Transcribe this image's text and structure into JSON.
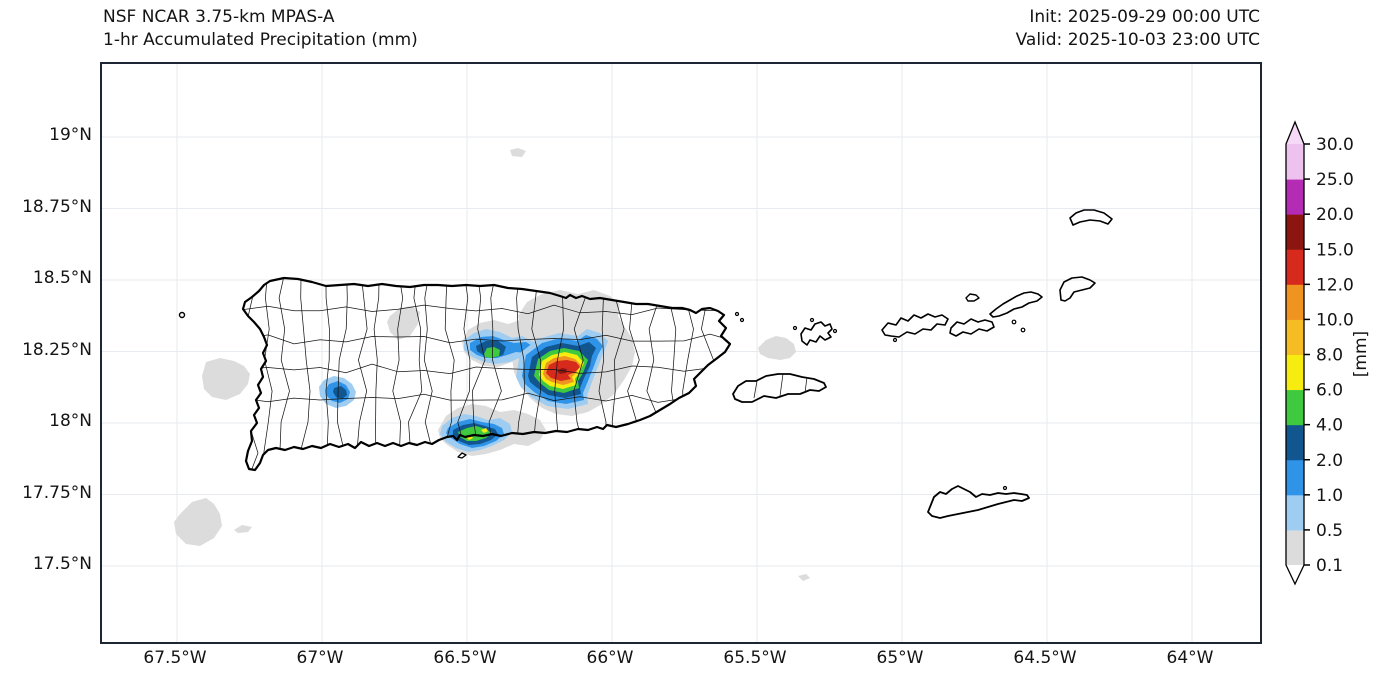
{
  "header": {
    "model_line": "NSF NCAR 3.75-km MPAS-A",
    "product_line": "1-hr Accumulated Precipitation (mm)",
    "init_line": "Init: 2025-09-29 00:00 UTC",
    "valid_line": "Valid: 2025-10-03 23:00 UTC"
  },
  "axes": {
    "x_tick_labels": [
      "67.5°W",
      "67°W",
      "66.5°W",
      "66°W",
      "65.5°W",
      "65°W",
      "64.5°W",
      "64°W"
    ],
    "y_tick_labels": [
      "19°N",
      "18.75°N",
      "18.5°N",
      "18.25°N",
      "18°N",
      "17.75°N",
      "17.5°N"
    ]
  },
  "colorbar": {
    "unit_label": "[mm]",
    "tick_labels": [
      "0.1",
      "0.5",
      "1.0",
      "2.0",
      "4.0",
      "6.0",
      "8.0",
      "10.0",
      "12.0",
      "15.0",
      "20.0",
      "25.0",
      "30.0"
    ],
    "segment_colors_bottom_to_top": [
      "#dcdcdc",
      "#9fcdf2",
      "#2f93e8",
      "#11568f",
      "#3fc93f",
      "#f7ec0f",
      "#f5bd23",
      "#ef9420",
      "#d62a1d",
      "#8c1411",
      "#b42cb4",
      "#eec2ee"
    ],
    "over_color": "#f5d9f6",
    "under_color": "#ffffff"
  },
  "palette": {
    "0.1": "#dcdcdc",
    "0.5": "#9fcdf2",
    "1": "#2f93e8",
    "2": "#11568f",
    "4": "#3fc93f",
    "6": "#f7ec0f",
    "8": "#f5bd23",
    "10": "#ef9420",
    "12": "#d62a1d",
    "15": "#8c1411",
    "20": "#b42cb4",
    "25": "#eec2ee"
  },
  "map": {
    "region": "Puerto Rico and Virgin Islands",
    "gridline_color": "#e7eaee",
    "coast_color": "#000000",
    "border_color": "#1c2634"
  }
}
